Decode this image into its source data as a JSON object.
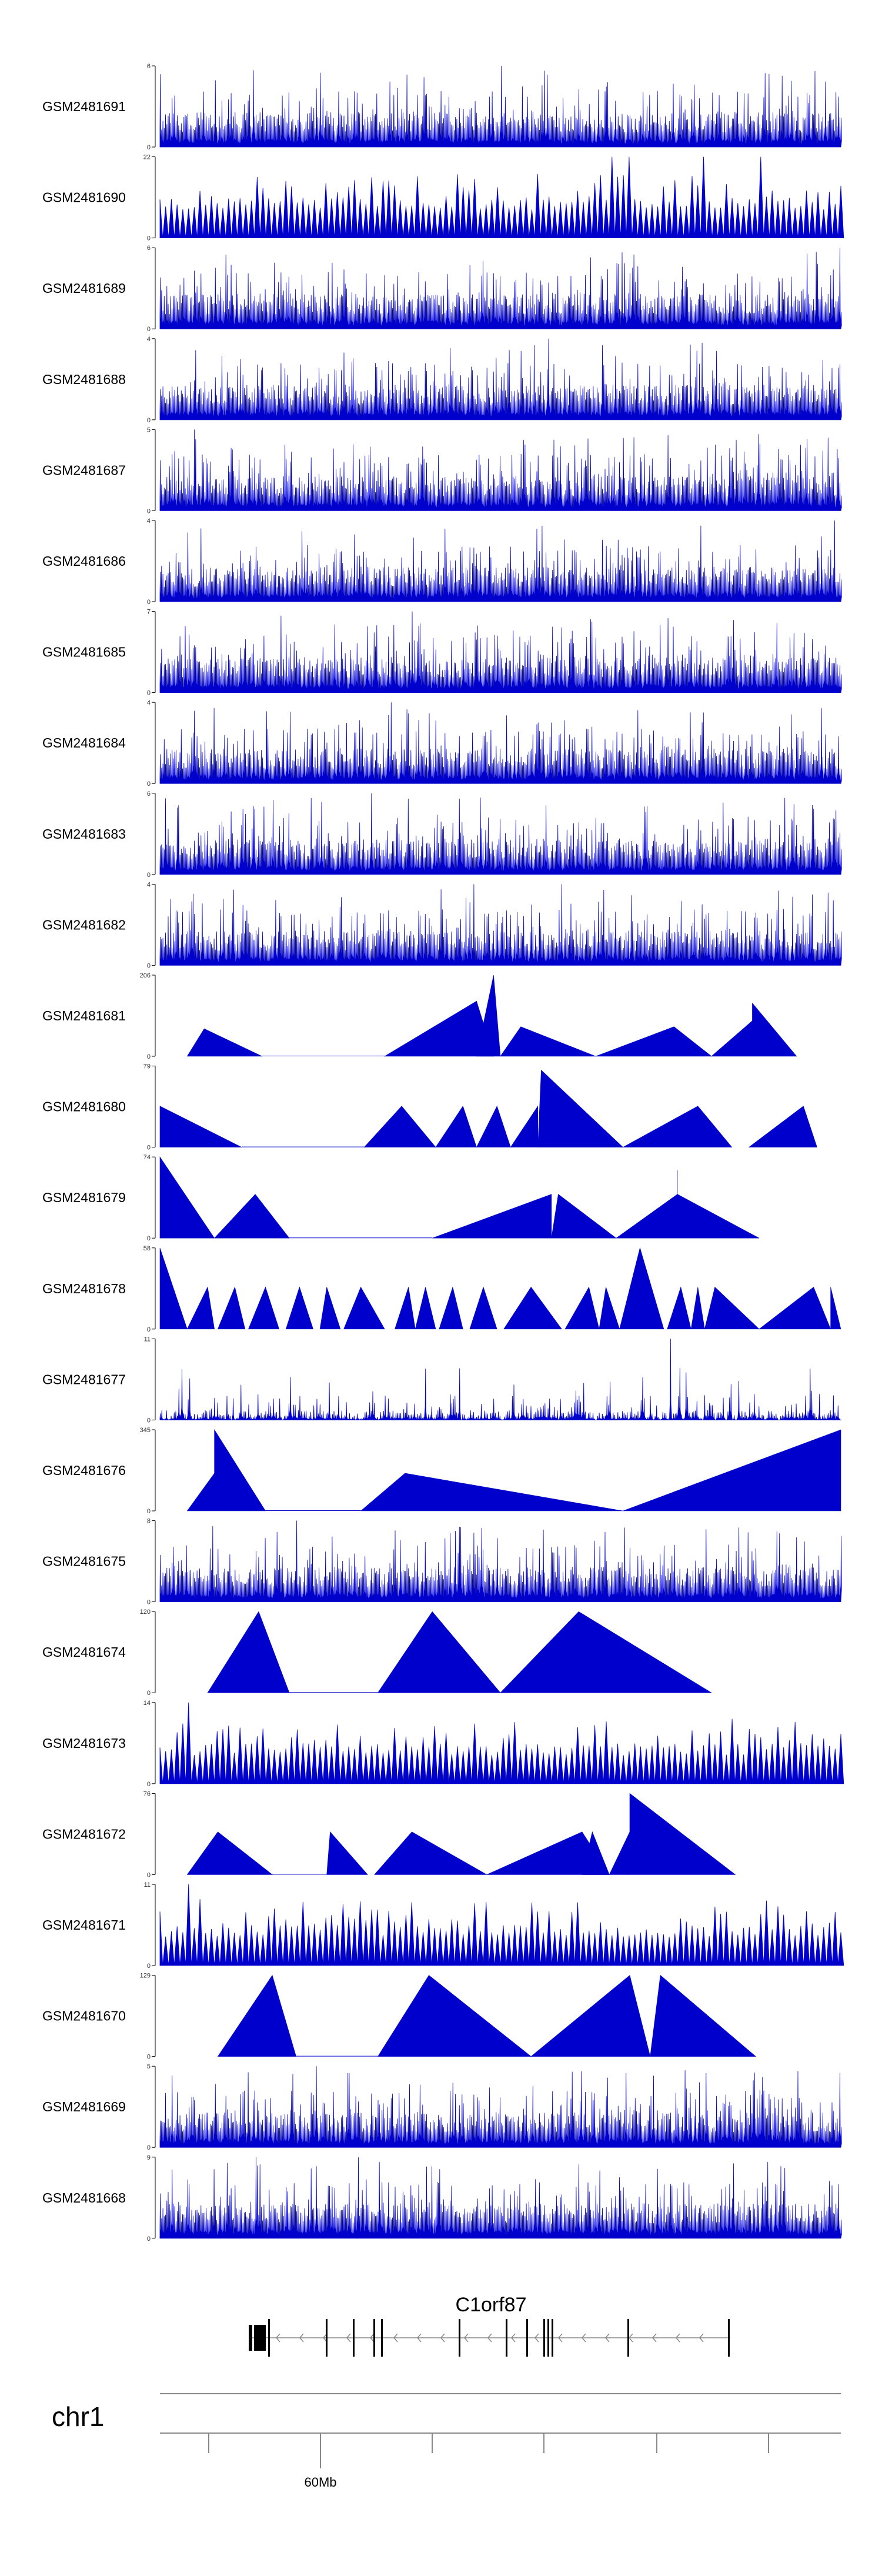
{
  "chart_data": {
    "type": "area",
    "colors": {
      "signal": "#0000cc",
      "axis": "#000000",
      "gene": "#000000",
      "intron": "#888888"
    },
    "series": [
      {
        "name": "GSM2481691",
        "ylim": [
          0,
          6
        ],
        "pattern": "dense",
        "seed": 11,
        "peaks": [
          [
            0.5,
            6.0
          ]
        ]
      },
      {
        "name": "GSM2481690",
        "ylim": [
          0,
          22
        ],
        "pattern": "spikes",
        "seed": 12,
        "peaks": [
          [
            0.66,
            22
          ],
          [
            0.69,
            22
          ],
          [
            0.8,
            22
          ],
          [
            0.88,
            22
          ]
        ]
      },
      {
        "name": "GSM2481689",
        "ylim": [
          0,
          6
        ],
        "pattern": "dense",
        "seed": 13,
        "peaks": [
          [
            0.998,
            6.0
          ]
        ]
      },
      {
        "name": "GSM2481688",
        "ylim": [
          0,
          4
        ],
        "pattern": "dense",
        "seed": 14,
        "peaks": [
          [
            0.57,
            4.0
          ]
        ]
      },
      {
        "name": "GSM2481687",
        "ylim": [
          0,
          5
        ],
        "pattern": "dense",
        "seed": 15,
        "peaks": [
          [
            0.05,
            5.0
          ]
        ]
      },
      {
        "name": "GSM2481686",
        "ylim": [
          0,
          4
        ],
        "pattern": "dense",
        "seed": 16,
        "peaks": [
          [
            0.99,
            4.0
          ]
        ]
      },
      {
        "name": "GSM2481685",
        "ylim": [
          0,
          7
        ],
        "pattern": "dense",
        "seed": 17,
        "peaks": [
          [
            0.37,
            7.0
          ]
        ]
      },
      {
        "name": "GSM2481684",
        "ylim": [
          0,
          4
        ],
        "pattern": "dense",
        "seed": 18,
        "peaks": [
          [
            0.34,
            4.0
          ]
        ]
      },
      {
        "name": "GSM2481683",
        "ylim": [
          0,
          6
        ],
        "pattern": "dense",
        "seed": 19,
        "peaks": [
          [
            0.31,
            6.0
          ]
        ]
      },
      {
        "name": "GSM2481682",
        "ylim": [
          0,
          4
        ],
        "pattern": "dense",
        "seed": 20,
        "peaks": [
          [
            0.46,
            4.0
          ],
          [
            0.59,
            4.0
          ]
        ]
      },
      {
        "name": "GSM2481681",
        "ylim": [
          0,
          206
        ],
        "pattern": "triangles",
        "tri": [
          [
            0.04,
            0.065,
            0.15,
            70
          ],
          [
            0.33,
            0.465,
            0.49,
            140
          ],
          [
            0.465,
            0.49,
            0.5,
            206
          ],
          [
            0.5,
            0.53,
            0.64,
            75
          ],
          [
            0.64,
            0.755,
            0.81,
            75
          ],
          [
            0.81,
            0.87,
            0.87,
            90
          ],
          [
            0.87,
            0.87,
            0.935,
            135
          ]
        ],
        "baseline": [
          [
            0.15,
            0.33
          ]
        ]
      },
      {
        "name": "GSM2481680",
        "ylim": [
          0,
          79
        ],
        "pattern": "triangles",
        "tri": [
          [
            0.0,
            0.0,
            0.12,
            40
          ],
          [
            0.3,
            0.355,
            0.355,
            40
          ],
          [
            0.355,
            0.355,
            0.405,
            40
          ],
          [
            0.405,
            0.445,
            0.465,
            40
          ],
          [
            0.465,
            0.495,
            0.515,
            40
          ],
          [
            0.515,
            0.555,
            0.555,
            40
          ],
          [
            0.555,
            0.56,
            0.68,
            75
          ],
          [
            0.555,
            0.56,
            0.68,
            40
          ],
          [
            0.68,
            0.79,
            0.84,
            40
          ],
          [
            0.865,
            0.945,
            0.965,
            40
          ]
        ],
        "baseline": [
          [
            0.12,
            0.3
          ]
        ]
      },
      {
        "name": "GSM2481679",
        "ylim": [
          0,
          74
        ],
        "pattern": "triangles",
        "tri": [
          [
            0.0,
            0.0,
            0.08,
            74
          ],
          [
            0.0,
            0.015,
            0.08,
            40
          ],
          [
            0.08,
            0.14,
            0.19,
            40
          ],
          [
            0.4,
            0.575,
            0.575,
            40
          ],
          [
            0.575,
            0.585,
            0.67,
            40
          ],
          [
            0.67,
            0.76,
            0.88,
            40
          ],
          [
            0.76,
            0.76,
            0.76,
            62
          ]
        ],
        "baseline": [
          [
            0.19,
            0.4
          ]
        ]
      },
      {
        "name": "GSM2481678",
        "ylim": [
          0,
          58
        ],
        "pattern": "triangles",
        "tri": [
          [
            0.0,
            0.0,
            0.04,
            58
          ],
          [
            0.04,
            0.07,
            0.08,
            30
          ],
          [
            0.085,
            0.11,
            0.125,
            30
          ],
          [
            0.13,
            0.155,
            0.175,
            30
          ],
          [
            0.185,
            0.205,
            0.225,
            30
          ],
          [
            0.235,
            0.245,
            0.265,
            30
          ],
          [
            0.27,
            0.295,
            0.33,
            30
          ],
          [
            0.345,
            0.365,
            0.375,
            30
          ],
          [
            0.375,
            0.39,
            0.405,
            30
          ],
          [
            0.41,
            0.43,
            0.445,
            30
          ],
          [
            0.455,
            0.475,
            0.495,
            30
          ],
          [
            0.505,
            0.545,
            0.59,
            30
          ],
          [
            0.595,
            0.63,
            0.645,
            30
          ],
          [
            0.645,
            0.655,
            0.675,
            30
          ],
          [
            0.675,
            0.705,
            0.74,
            58
          ],
          [
            0.745,
            0.765,
            0.78,
            30
          ],
          [
            0.78,
            0.79,
            0.8,
            30
          ],
          [
            0.8,
            0.815,
            0.88,
            30
          ],
          [
            0.88,
            0.96,
            0.985,
            30
          ],
          [
            0.985,
            0.985,
            1.0,
            30
          ]
        ]
      },
      {
        "name": "GSM2481677",
        "ylim": [
          0,
          11
        ],
        "pattern": "sparse",
        "seed": 21,
        "peaks": [
          [
            0.44,
            7.0
          ],
          [
            0.75,
            11.0
          ]
        ]
      },
      {
        "name": "GSM2481676",
        "ylim": [
          0,
          345
        ],
        "pattern": "triangles",
        "tri": [
          [
            0.04,
            0.08,
            0.08,
            160
          ],
          [
            0.08,
            0.08,
            0.155,
            345
          ],
          [
            0.295,
            0.36,
            0.68,
            160
          ],
          [
            0.68,
            1.0,
            1.0,
            345
          ]
        ],
        "baseline": [
          [
            0.155,
            0.295
          ]
        ]
      },
      {
        "name": "GSM2481675",
        "ylim": [
          0,
          8
        ],
        "pattern": "dense",
        "seed": 22,
        "peaks": [
          [
            0.2,
            8.0
          ]
        ]
      },
      {
        "name": "GSM2481674",
        "ylim": [
          0,
          120
        ],
        "pattern": "triangles",
        "tri": [
          [
            0.07,
            0.145,
            0.19,
            120
          ],
          [
            0.32,
            0.4,
            0.5,
            120
          ],
          [
            0.5,
            0.615,
            0.81,
            120
          ]
        ],
        "baseline": [
          [
            0.19,
            0.32
          ]
        ]
      },
      {
        "name": "GSM2481673",
        "ylim": [
          0,
          14
        ],
        "pattern": "spikes",
        "seed": 23,
        "peaks": [
          [
            0.04,
            14
          ],
          [
            0.1,
            10
          ],
          [
            0.19,
            8
          ],
          [
            0.88,
            8
          ]
        ]
      },
      {
        "name": "GSM2481672",
        "ylim": [
          0,
          76
        ],
        "pattern": "triangles",
        "tri": [
          [
            0.04,
            0.085,
            0.165,
            40
          ],
          [
            0.245,
            0.25,
            0.305,
            40
          ],
          [
            0.315,
            0.37,
            0.48,
            40
          ],
          [
            0.48,
            0.62,
            0.66,
            40
          ],
          [
            0.62,
            0.635,
            0.66,
            40
          ],
          [
            0.66,
            0.69,
            0.69,
            40
          ],
          [
            0.69,
            0.69,
            0.845,
            76
          ]
        ],
        "baseline": [
          [
            0.165,
            0.245
          ]
        ]
      },
      {
        "name": "GSM2481671",
        "ylim": [
          0,
          11
        ],
        "pattern": "spikes",
        "seed": 24,
        "peaks": [
          [
            0.04,
            11
          ],
          [
            0.06,
            9
          ]
        ]
      },
      {
        "name": "GSM2481670",
        "ylim": [
          0,
          129
        ],
        "pattern": "triangles",
        "tri": [
          [
            0.085,
            0.165,
            0.2,
            129
          ],
          [
            0.32,
            0.395,
            0.545,
            129
          ],
          [
            0.545,
            0.69,
            0.72,
            129
          ],
          [
            0.72,
            0.735,
            0.875,
            129
          ]
        ],
        "baseline": [
          [
            0.2,
            0.32
          ]
        ]
      },
      {
        "name": "GSM2481669",
        "ylim": [
          0,
          5
        ],
        "pattern": "dense",
        "seed": 25,
        "peaks": [
          [
            0.23,
            5.0
          ]
        ]
      },
      {
        "name": "GSM2481668",
        "ylim": [
          0,
          9
        ],
        "pattern": "dense",
        "seed": 26,
        "peaks": [
          [
            0.14,
            9.0
          ],
          [
            0.29,
            9.0
          ]
        ]
      }
    ],
    "gene": {
      "name": "C1orf87",
      "strand": "-"
    },
    "chromosome": {
      "name": "chr1",
      "tick_label": "60Mb"
    }
  }
}
